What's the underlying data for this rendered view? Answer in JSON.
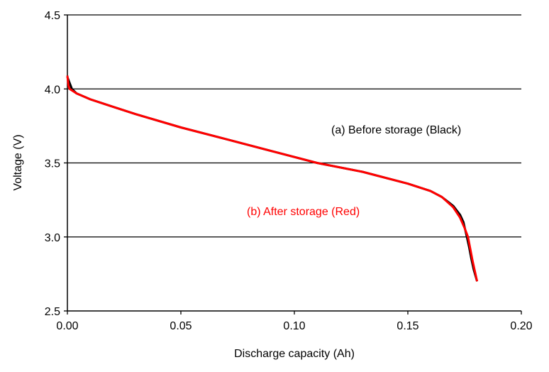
{
  "chart_data": {
    "type": "line",
    "title": "",
    "xlabel": "Discharge capacity (Ah)",
    "ylabel": "Voltage (V)",
    "xlim": [
      0,
      0.2
    ],
    "ylim": [
      2.5,
      4.5
    ],
    "xticks": [
      "0.00",
      "0.05",
      "0.10",
      "0.15",
      "0.20"
    ],
    "xtick_values": [
      0,
      0.05,
      0.1,
      0.15,
      0.2
    ],
    "yticks": [
      "2.5",
      "3.0",
      "3.5",
      "4.0",
      "4.5"
    ],
    "ytick_values": [
      2.5,
      3.0,
      3.5,
      4.0,
      4.5
    ],
    "grid": "horizontal",
    "series": [
      {
        "label": "(a) Before storage (Black)",
        "color": "#000000",
        "x": [
          0,
          0.001,
          0.002,
          0.004,
          0.01,
          0.02,
          0.03,
          0.05,
          0.07,
          0.09,
          0.11,
          0.13,
          0.15,
          0.16,
          0.165,
          0.17,
          0.173,
          0.1745,
          0.176,
          0.177,
          0.178,
          0.179,
          0.1805
        ],
        "y": [
          4.08,
          4.04,
          4.0,
          3.97,
          3.93,
          3.88,
          3.83,
          3.74,
          3.66,
          3.58,
          3.5,
          3.44,
          3.36,
          3.31,
          3.27,
          3.21,
          3.15,
          3.1,
          3.0,
          2.93,
          2.85,
          2.78,
          2.7
        ]
      },
      {
        "label": "(b) After storage (Red)",
        "color": "#ff0000",
        "x": [
          0,
          0.0005,
          0.001,
          0.004,
          0.01,
          0.02,
          0.03,
          0.05,
          0.07,
          0.09,
          0.11,
          0.13,
          0.15,
          0.16,
          0.165,
          0.17,
          0.173,
          0.175,
          0.1765,
          0.1775,
          0.1785,
          0.1795,
          0.1805
        ],
        "y": [
          4.09,
          4.02,
          4.0,
          3.97,
          3.93,
          3.88,
          3.83,
          3.74,
          3.66,
          3.58,
          3.5,
          3.44,
          3.36,
          3.31,
          3.27,
          3.2,
          3.13,
          3.06,
          3.0,
          2.92,
          2.84,
          2.77,
          2.7
        ]
      }
    ]
  }
}
